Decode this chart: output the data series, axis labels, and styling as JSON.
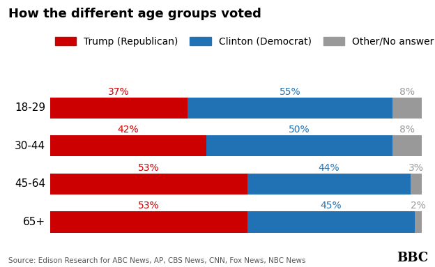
{
  "title": "How the different age groups voted",
  "categories": [
    "18-29",
    "30-44",
    "45-64",
    "65+"
  ],
  "trump": [
    37,
    42,
    53,
    53
  ],
  "clinton": [
    55,
    50,
    44,
    45
  ],
  "other": [
    8,
    8,
    3,
    2
  ],
  "trump_color": "#cc0000",
  "clinton_color": "#2072b5",
  "other_color": "#999999",
  "trump_label": "Trump (Republican)",
  "clinton_label": "Clinton (Democrat)",
  "other_label": "Other/No answer",
  "source_text": "Source: Edison Research for ABC News, AP, CBS News, CNN, Fox News, NBC News",
  "bbc_text": "BBC",
  "bg_color": "#ffffff",
  "title_fontsize": 13,
  "pct_fontsize": 10,
  "cat_fontsize": 11,
  "legend_fontsize": 10,
  "bar_height": 0.55
}
